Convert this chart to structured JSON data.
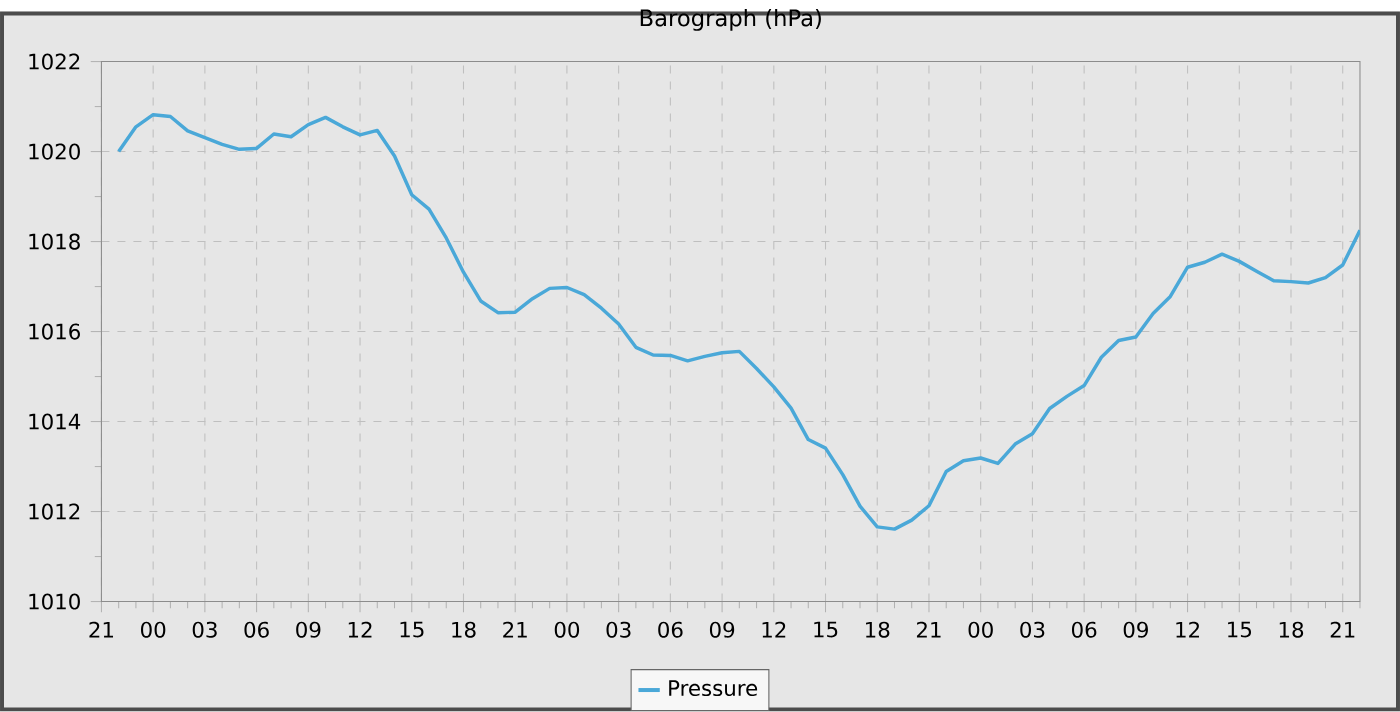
{
  "chart_data": {
    "type": "line",
    "title": "Barograph (hPa)",
    "categories": [
      "21",
      null,
      null,
      "00",
      null,
      null,
      "03",
      null,
      null,
      "06",
      null,
      null,
      "09",
      null,
      null,
      "12",
      null,
      null,
      "15",
      null,
      null,
      "18",
      null,
      null,
      "21",
      null,
      null,
      "00",
      null,
      null,
      "03",
      null,
      null,
      "06",
      null,
      null,
      "09",
      null,
      null,
      "12",
      null,
      null,
      "15",
      null,
      null,
      "18",
      null,
      null,
      "21",
      null,
      null,
      "00",
      null,
      null,
      "03",
      null,
      null,
      "06",
      null,
      null,
      "09",
      null,
      null,
      "12",
      null,
      null,
      "15",
      null,
      null,
      "18",
      null,
      null,
      "21",
      null
    ],
    "series": [
      {
        "name": "Pressure",
        "color": "#4aa8d8",
        "values": [
          null,
          1020.0,
          1020.55,
          1020.82,
          1020.78,
          1020.46,
          1020.31,
          1020.16,
          1020.05,
          1020.07,
          1020.39,
          1020.33,
          1020.6,
          1020.76,
          1020.55,
          1020.37,
          1020.47,
          1019.9,
          1019.04,
          1018.72,
          1018.08,
          1017.32,
          1016.68,
          1016.42,
          1016.43,
          1016.73,
          1016.96,
          1016.98,
          1016.82,
          1016.52,
          1016.17,
          1015.65,
          1015.48,
          1015.47,
          1015.35,
          1015.45,
          1015.53,
          1015.56,
          1015.18,
          1014.77,
          1014.3,
          1013.6,
          1013.41,
          1012.82,
          1012.12,
          1011.66,
          1011.61,
          1011.81,
          1012.13,
          1012.89,
          1013.13,
          1013.19,
          1013.07,
          1013.5,
          1013.73,
          1014.29,
          1014.56,
          1014.8,
          1015.43,
          1015.8,
          1015.88,
          1016.4,
          1016.78,
          1017.43,
          1017.54,
          1017.72,
          1017.56,
          1017.34,
          1017.13,
          1017.11,
          1017.08,
          1017.2,
          1017.48,
          1018.25
        ]
      }
    ],
    "ylim": [
      1010,
      1022
    ],
    "yticks": [
      1010,
      1012,
      1014,
      1016,
      1018,
      1020,
      1022
    ],
    "grid": true,
    "legend": "bottom",
    "marker": "none",
    "line_style": "solid"
  }
}
